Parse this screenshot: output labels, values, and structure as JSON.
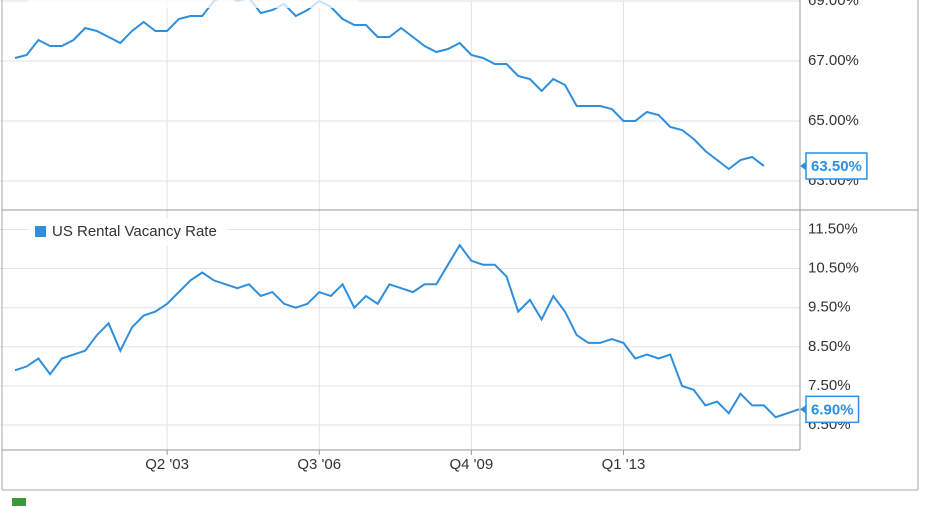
{
  "chart_data": [
    {
      "type": "line",
      "series": [
        {
          "color": "#2f8fdd",
          "values": [
            67.1,
            67.2,
            67.7,
            67.5,
            67.5,
            67.7,
            68.1,
            68.0,
            67.8,
            67.6,
            68.0,
            68.3,
            68.0,
            68.0,
            68.4,
            68.5,
            68.5,
            69.0,
            69.2,
            69.0,
            69.1,
            68.6,
            68.7,
            68.9,
            68.5,
            68.7,
            69.0,
            68.8,
            68.4,
            68.2,
            68.2,
            67.8,
            67.8,
            68.1,
            67.8,
            67.5,
            67.3,
            67.4,
            67.6,
            67.2,
            67.1,
            66.9,
            66.9,
            66.5,
            66.4,
            66.0,
            66.4,
            66.2,
            65.5,
            65.5,
            65.5,
            65.4,
            65.0,
            65.0,
            65.3,
            65.2,
            64.8,
            64.7,
            64.4,
            64.0,
            63.7,
            63.4,
            63.7,
            63.8,
            63.5,
            null,
            null,
            null
          ],
          "value_labels": [
            null,
            null,
            null,
            null,
            null,
            null,
            null,
            null,
            null,
            null,
            null,
            null,
            null,
            null,
            null,
            null,
            null,
            null,
            null,
            null,
            null,
            null,
            null,
            null,
            null,
            null,
            null,
            null,
            null,
            null,
            null,
            null,
            null,
            null,
            null,
            null,
            null,
            null,
            null,
            null,
            null,
            null,
            null,
            null,
            null,
            null,
            null,
            null,
            null,
            null,
            null,
            null,
            null,
            null,
            null,
            null,
            null,
            null,
            null,
            null,
            null,
            null,
            null,
            null,
            "63.50%",
            null,
            null,
            null
          ]
        }
      ],
      "ylim": [
        62,
        69
      ],
      "yticks": [
        {
          "value": 63,
          "label": "63.00%"
        },
        {
          "value": 65,
          "label": "65.00%"
        },
        {
          "value": 67,
          "label": "67.00%"
        },
        {
          "value": 69,
          "label": "69.00%"
        }
      ],
      "grid": true
    },
    {
      "type": "line",
      "categories": [
        null,
        null,
        null,
        null,
        null,
        null,
        null,
        null,
        null,
        null,
        null,
        null,
        null,
        "Q2 '03",
        null,
        null,
        null,
        null,
        null,
        null,
        null,
        null,
        null,
        null,
        null,
        null,
        "Q3 '06",
        null,
        null,
        null,
        null,
        null,
        null,
        null,
        null,
        null,
        null,
        null,
        null,
        "Q4 '09",
        null,
        null,
        null,
        null,
        null,
        null,
        null,
        null,
        null,
        null,
        null,
        null,
        "Q1 '13",
        null,
        null,
        null,
        null,
        null,
        null,
        null,
        null,
        null,
        null,
        null,
        null,
        null,
        null,
        null
      ],
      "series": [
        {
          "name": "US Rental Vacancy Rate",
          "color": "#2f8fdd",
          "values": [
            7.9,
            8.0,
            8.2,
            7.8,
            8.2,
            8.3,
            8.4,
            8.8,
            9.1,
            8.4,
            9.0,
            9.3,
            9.4,
            9.6,
            9.9,
            10.2,
            10.4,
            10.2,
            10.1,
            10.0,
            10.1,
            9.8,
            9.9,
            9.6,
            9.5,
            9.6,
            9.9,
            9.8,
            10.1,
            9.5,
            9.8,
            9.6,
            10.1,
            10.0,
            9.9,
            10.1,
            10.1,
            10.6,
            11.1,
            10.7,
            10.6,
            10.6,
            10.3,
            9.4,
            9.7,
            9.2,
            9.8,
            9.4,
            8.8,
            8.6,
            8.6,
            8.7,
            8.6,
            8.2,
            8.3,
            8.2,
            8.3,
            7.5,
            7.4,
            7.0,
            7.1,
            6.8,
            7.3,
            7.0,
            7.0,
            6.7,
            6.8,
            6.9
          ],
          "value_labels": [
            null,
            null,
            null,
            null,
            null,
            null,
            null,
            null,
            null,
            null,
            null,
            null,
            null,
            null,
            null,
            null,
            null,
            null,
            null,
            null,
            null,
            null,
            null,
            null,
            null,
            null,
            null,
            null,
            null,
            null,
            null,
            null,
            null,
            null,
            null,
            null,
            null,
            null,
            null,
            null,
            null,
            null,
            null,
            null,
            null,
            null,
            null,
            null,
            null,
            null,
            null,
            null,
            null,
            null,
            null,
            null,
            null,
            null,
            null,
            null,
            null,
            null,
            null,
            null,
            null,
            null,
            null,
            "6.90%"
          ]
        }
      ],
      "ylim": [
        5.86,
        12.0
      ],
      "yticks": [
        {
          "value": 6.5,
          "label": "6.50%"
        },
        {
          "value": 7.5,
          "label": "7.50%"
        },
        {
          "value": 8.5,
          "label": "8.50%"
        },
        {
          "value": 9.5,
          "label": "9.50%"
        },
        {
          "value": 10.5,
          "label": "10.50%"
        },
        {
          "value": 11.5,
          "label": "11.50%"
        }
      ],
      "grid": true
    }
  ]
}
